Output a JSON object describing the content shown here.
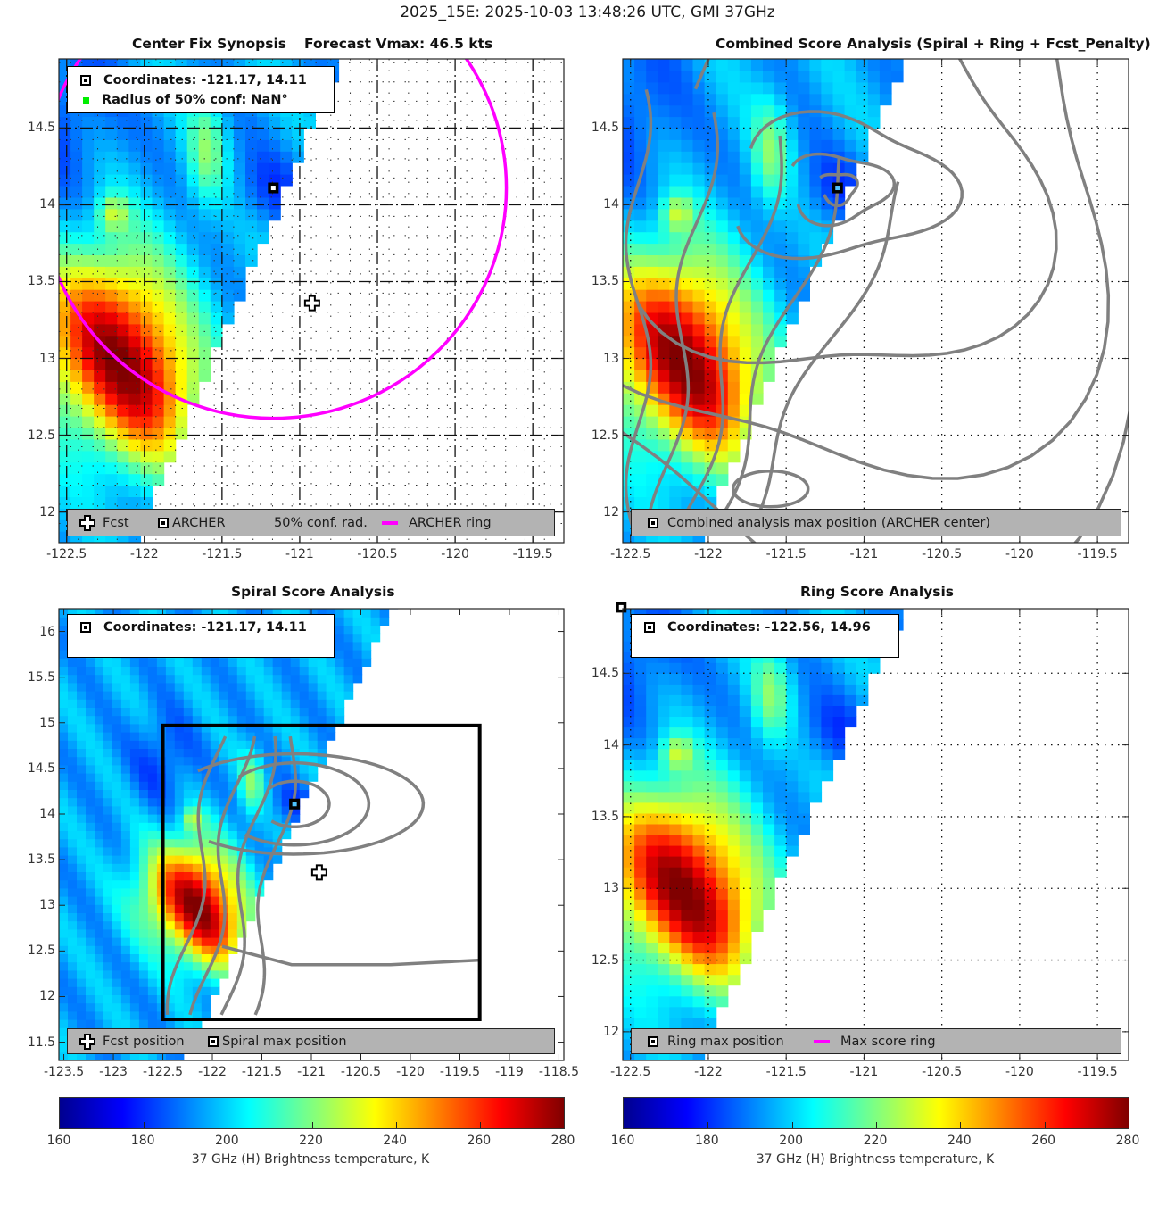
{
  "suptitle": "2025_15E: 2025-10-03 13:48:26 UTC, GMI 37GHz",
  "chart_data": [
    {
      "type": "heatmap",
      "id": "center-fix",
      "title_left": "Center Fix Synopsis",
      "title_right": "Forecast Vmax: 46.5 kts",
      "xlim": [
        -122.55,
        -119.3
      ],
      "ylim": [
        11.8,
        14.95
      ],
      "xticks": [
        -122.5,
        -122,
        -121.5,
        -121,
        -120.5,
        -120,
        -119.5
      ],
      "yticks": [
        12,
        12.5,
        13,
        13.5,
        14,
        14.5
      ],
      "xtick_labels": [
        "-122.5",
        "-122",
        "-121.5",
        "-121",
        "-120.5",
        "-120",
        "-119.5"
      ],
      "ytick_labels": [
        "12",
        "12.5",
        "13",
        "13.5",
        "14",
        "14.5"
      ],
      "grid": "dense dash-dot",
      "info": {
        "coordinates": "Coordinates: -121.17, 14.11",
        "radius": "Radius of 50% conf: NaN°"
      },
      "archer_center": [
        -121.17,
        14.11
      ],
      "fcst_position": [
        -120.92,
        13.36
      ],
      "archer_ring": {
        "center": [
          -121.17,
          14.11
        ],
        "radius_deg": 1.5,
        "color": "#ff00ff"
      },
      "legend": {
        "items": [
          {
            "icon": "plus-icon",
            "label": "Fcst"
          },
          {
            "icon": "square-marker-icon",
            "label": "ARCHER"
          },
          {
            "icon": "none",
            "label": "50% conf. rad."
          },
          {
            "icon": "magenta-line-icon",
            "label": "ARCHER ring"
          }
        ],
        "placement": "bottom"
      }
    },
    {
      "type": "heatmap",
      "id": "combined",
      "title": "Combined Score Analysis (Spiral + Ring + Fcst_Penalty)",
      "xlim": [
        -122.55,
        -119.3
      ],
      "ylim": [
        11.8,
        14.95
      ],
      "xticks": [
        -122.5,
        -122,
        -121.5,
        -121,
        -120.5,
        -120,
        -119.5
      ],
      "yticks": [
        12,
        12.5,
        13,
        13.5,
        14,
        14.5
      ],
      "xtick_labels": [
        "-122.5",
        "-122",
        "-121.5",
        "-121",
        "-120.5",
        "-120",
        "-119.5"
      ],
      "ytick_labels": [
        "12",
        "12.5",
        "13",
        "13.5",
        "14",
        "14.5"
      ],
      "grid": "dotted",
      "max_position": [
        -121.17,
        14.11
      ],
      "contour_color": "#808080",
      "legend": {
        "items": [
          {
            "icon": "square-marker-icon",
            "label": "Combined analysis max position (ARCHER center)"
          }
        ],
        "placement": "bottom"
      }
    },
    {
      "type": "heatmap",
      "id": "spiral",
      "title": "Spiral Score Analysis",
      "xlim": [
        -123.55,
        -118.45
      ],
      "ylim": [
        11.3,
        16.25
      ],
      "xticks": [
        -123.5,
        -123,
        -122.5,
        -122,
        -121.5,
        -121,
        -120.5,
        -120,
        -119.5,
        -119,
        -118.5
      ],
      "yticks": [
        11.5,
        12,
        12.5,
        13,
        13.5,
        14,
        14.5,
        15,
        15.5,
        16
      ],
      "xtick_labels": [
        "-123.5",
        "-123",
        "-122.5",
        "-122",
        "-121.5",
        "-121",
        "-120.5",
        "-120",
        "-119.5",
        "-119",
        "-118.5"
      ],
      "ytick_labels": [
        "11.5",
        "12",
        "12.5",
        "13",
        "13.5",
        "14",
        "14.5",
        "15",
        "15.5",
        "16"
      ],
      "grid": "off",
      "info": {
        "coordinates": "Coordinates: -121.17, 14.11"
      },
      "spiral_max": [
        -121.17,
        14.11
      ],
      "fcst_position": [
        -120.92,
        13.36
      ],
      "search_box": {
        "lon": [
          -122.5,
          -119.3
        ],
        "lat": [
          11.75,
          14.97
        ]
      },
      "legend": {
        "items": [
          {
            "icon": "plus-icon",
            "label": "Fcst position"
          },
          {
            "icon": "square-marker-icon",
            "label": "Spiral max position"
          }
        ],
        "placement": "bottom"
      }
    },
    {
      "type": "heatmap",
      "id": "ring",
      "title": "Ring Score Analysis",
      "xlim": [
        -122.55,
        -119.3
      ],
      "ylim": [
        11.8,
        14.95
      ],
      "xticks": [
        -122.5,
        -122,
        -121.5,
        -121,
        -120.5,
        -120,
        -119.5
      ],
      "yticks": [
        12,
        12.5,
        13,
        13.5,
        14,
        14.5
      ],
      "xtick_labels": [
        "-122.5",
        "-122",
        "-121.5",
        "-121",
        "-120.5",
        "-120",
        "-119.5"
      ],
      "ytick_labels": [
        "12",
        "12.5",
        "13",
        "13.5",
        "14",
        "14.5"
      ],
      "grid": "dotted",
      "info": {
        "coordinates": "Coordinates: -122.56, 14.96"
      },
      "ring_max": [
        -122.56,
        14.96
      ],
      "legend": {
        "items": [
          {
            "icon": "square-marker-icon",
            "label": "Ring max position"
          },
          {
            "icon": "magenta-line-icon",
            "label": "Max score ring"
          }
        ],
        "placement": "bottom"
      }
    }
  ],
  "colorbar": {
    "range": [
      160,
      280
    ],
    "ticks": [
      "160",
      "180",
      "200",
      "220",
      "240",
      "260",
      "280"
    ],
    "label": "37 GHz (H) Brightness temperature, K",
    "colormap": "jet"
  }
}
